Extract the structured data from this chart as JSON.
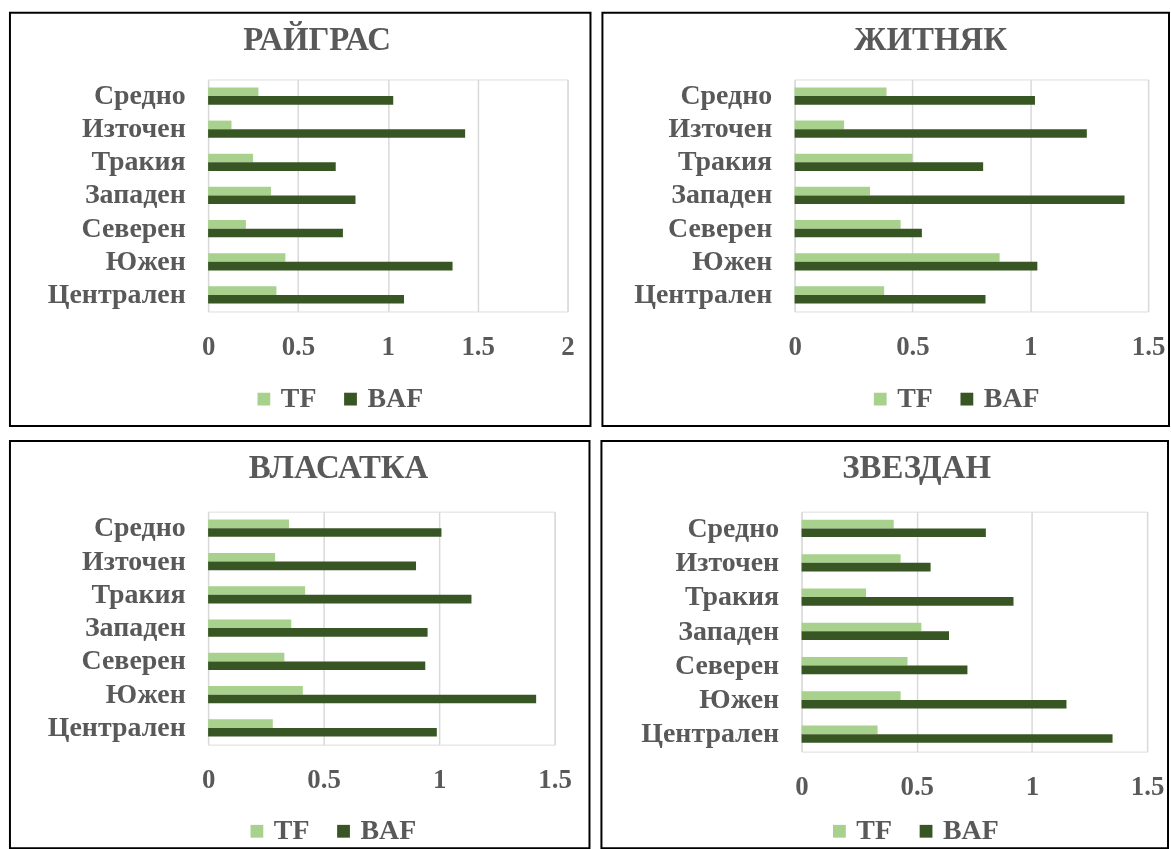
{
  "chart_data": [
    {
      "type": "bar",
      "orientation": "horizontal",
      "title": "РАЙГРАС",
      "categories": [
        "Средно",
        "Източен",
        "Тракия",
        "Западен",
        "Северен",
        "Южен",
        "Централен"
      ],
      "series": [
        {
          "name": "TF",
          "color": "#a9d18e",
          "values": [
            0.28,
            0.13,
            0.25,
            0.35,
            0.21,
            0.43,
            0.38
          ]
        },
        {
          "name": "BAF",
          "color": "#375623",
          "values": [
            1.03,
            1.43,
            0.71,
            0.82,
            0.75,
            1.36,
            1.09
          ]
        }
      ],
      "xlim": [
        0,
        2
      ],
      "xticks": [
        0,
        0.5,
        1,
        1.5,
        2
      ],
      "grid": "x",
      "legend": "bottom"
    },
    {
      "type": "bar",
      "orientation": "horizontal",
      "title": "ЖИТНЯК",
      "categories": [
        "Средно",
        "Източен",
        "Тракия",
        "Западен",
        "Северен",
        "Южен",
        "Централен"
      ],
      "series": [
        {
          "name": "TF",
          "color": "#a9d18e",
          "values": [
            0.39,
            0.21,
            0.5,
            0.32,
            0.45,
            0.87,
            0.38
          ]
        },
        {
          "name": "BAF",
          "color": "#375623",
          "values": [
            1.02,
            1.24,
            0.8,
            1.4,
            0.54,
            1.03,
            0.81
          ]
        }
      ],
      "xlim": [
        0,
        1.5
      ],
      "xticks": [
        0,
        0.5,
        1,
        1.5
      ],
      "grid": "x",
      "legend": "bottom"
    },
    {
      "type": "bar",
      "orientation": "horizontal",
      "title": "ВЛАСАТКА",
      "categories": [
        "Средно",
        "Източен",
        "Тракия",
        "Западен",
        "Северен",
        "Южен",
        "Централен"
      ],
      "series": [
        {
          "name": "TF",
          "color": "#a9d18e",
          "values": [
            0.35,
            0.29,
            0.42,
            0.36,
            0.33,
            0.41,
            0.28
          ]
        },
        {
          "name": "BAF",
          "color": "#375623",
          "values": [
            1.01,
            0.9,
            1.14,
            0.95,
            0.94,
            1.42,
            0.99
          ]
        }
      ],
      "xlim": [
        0,
        1.5
      ],
      "xticks": [
        0,
        0.5,
        1,
        1.5
      ],
      "grid": "x",
      "legend": "bottom"
    },
    {
      "type": "bar",
      "orientation": "horizontal",
      "title": "ЗВЕЗДАН",
      "categories": [
        "Средно",
        "Източен",
        "Тракия",
        "Западен",
        "Северен",
        "Южен",
        "Централен"
      ],
      "series": [
        {
          "name": "TF",
          "color": "#a9d18e",
          "values": [
            0.4,
            0.43,
            0.28,
            0.52,
            0.46,
            0.43,
            0.33
          ]
        },
        {
          "name": "BAF",
          "color": "#375623",
          "values": [
            0.8,
            0.56,
            0.92,
            0.64,
            0.72,
            1.15,
            1.35
          ]
        }
      ],
      "xlim": [
        0,
        1.5
      ],
      "xticks": [
        0,
        0.5,
        1,
        1.5
      ],
      "grid": "x",
      "legend": "bottom"
    }
  ]
}
